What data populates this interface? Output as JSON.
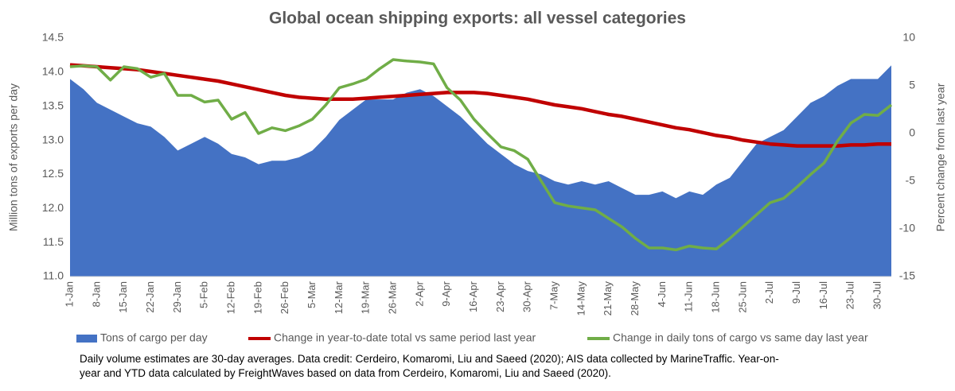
{
  "chart_data": {
    "type": "area_line",
    "title": "Global ocean shipping exports: all vessel categories",
    "ylabel": "Million tons of exports per day",
    "y2label": "Percent change from last year",
    "note": "Daily volume estimates are 30-day averages. Data credit: Cerdeiro, Komaromi, Liu and Saeed (2020); AIS data collected by MarineTraffic. Year-on-year and YTD data calculated by FreightWaves based on data from Cerdeiro, Komaromi, Liu and Saeed (2020).",
    "categories": [
      "1-Jan",
      null,
      "8-Jan",
      null,
      "15-Jan",
      null,
      "22-Jan",
      null,
      "29-Jan",
      null,
      "5-Feb",
      null,
      "12-Feb",
      null,
      "19-Feb",
      null,
      "26-Feb",
      null,
      "5-Mar",
      null,
      "12-Mar",
      null,
      "19-Mar",
      null,
      "26-Mar",
      null,
      "2-Apr",
      null,
      "9-Apr",
      null,
      "16-Apr",
      null,
      "23-Apr",
      null,
      "30-Apr",
      null,
      "7-May",
      null,
      "14-May",
      null,
      "21-May",
      null,
      "28-May",
      null,
      "4-Jun",
      null,
      "11-Jun",
      null,
      "18-Jun",
      null,
      "25-Jun",
      null,
      "2-Jul",
      null,
      "9-Jul",
      null,
      "16-Jul",
      null,
      "23-Jul",
      null,
      "30-Jul",
      null
    ],
    "series": [
      {
        "name": "Tons of cargo per day",
        "color": "#4472c4",
        "kind": "area",
        "values": [
          13.9,
          13.75,
          13.55,
          13.45,
          13.35,
          13.25,
          13.2,
          13.05,
          12.85,
          12.95,
          13.05,
          12.95,
          12.8,
          12.75,
          12.65,
          12.7,
          12.7,
          12.75,
          12.85,
          13.05,
          13.3,
          13.45,
          13.6,
          13.6,
          13.6,
          13.7,
          13.75,
          13.65,
          13.5,
          13.35,
          13.15,
          12.95,
          12.8,
          12.65,
          12.55,
          12.5,
          12.4,
          12.35,
          12.4,
          12.35,
          12.4,
          12.3,
          12.2,
          12.2,
          12.25,
          12.15,
          12.25,
          12.2,
          12.35,
          12.45,
          12.7,
          12.95,
          13.05,
          13.15,
          13.35,
          13.55,
          13.65,
          13.8,
          13.9,
          13.9,
          13.9,
          14.1
        ]
      },
      {
        "name": "Change in year-to-date total vs same period last year",
        "color": "#c00000",
        "kind": "line",
        "axis": "y2",
        "values": [
          7.2,
          7.1,
          7.0,
          6.9,
          6.8,
          6.7,
          6.5,
          6.3,
          6.1,
          5.9,
          5.7,
          5.5,
          5.2,
          4.9,
          4.6,
          4.3,
          4.0,
          3.8,
          3.7,
          3.6,
          3.6,
          3.6,
          3.7,
          3.8,
          3.9,
          4.0,
          4.1,
          4.2,
          4.3,
          4.3,
          4.3,
          4.2,
          4.0,
          3.8,
          3.6,
          3.3,
          3.0,
          2.8,
          2.6,
          2.3,
          2.0,
          1.8,
          1.5,
          1.2,
          0.9,
          0.6,
          0.4,
          0.1,
          -0.2,
          -0.4,
          -0.7,
          -0.9,
          -1.1,
          -1.2,
          -1.3,
          -1.3,
          -1.3,
          -1.3,
          -1.2,
          -1.2,
          -1.1,
          -1.1
        ]
      },
      {
        "name": "Change in daily tons of cargo vs same day last year",
        "color": "#70ad47",
        "kind": "line",
        "axis": "y2",
        "values": [
          7.0,
          7.1,
          7.0,
          5.6,
          7.0,
          6.8,
          5.9,
          6.3,
          4.0,
          4.0,
          3.3,
          3.5,
          1.5,
          2.2,
          0.0,
          0.6,
          0.3,
          0.8,
          1.5,
          3.0,
          4.8,
          5.2,
          5.7,
          6.8,
          7.75,
          7.6,
          7.5,
          7.3,
          4.8,
          3.5,
          1.5,
          0.0,
          -1.4,
          -1.8,
          -2.7,
          -5.0,
          -7.25,
          -7.6,
          -7.8,
          -8.0,
          -8.9,
          -9.8,
          -11.0,
          -12.0,
          -12.0,
          -12.2,
          -11.8,
          -12.0,
          -12.1,
          -11.0,
          -9.75,
          -8.5,
          -7.25,
          -6.8,
          -5.6,
          -4.3,
          -3.1,
          -0.8,
          1.1,
          2.0,
          1.9,
          3.0
        ]
      }
    ],
    "ylim": [
      11,
      14.5
    ],
    "yticks": [
      {
        "value": 11,
        "label": "11.0"
      },
      11.5,
      {
        "value": 12,
        "label": "12.0"
      },
      12.5,
      {
        "value": 13,
        "label": "13.0"
      },
      13.5,
      {
        "value": 14,
        "label": "14.0"
      },
      14.5
    ],
    "y2lim": [
      -15,
      10
    ],
    "y2ticks": [
      -15,
      -10,
      -5,
      0,
      5,
      10
    ],
    "grid": false,
    "legend": "bottom"
  }
}
